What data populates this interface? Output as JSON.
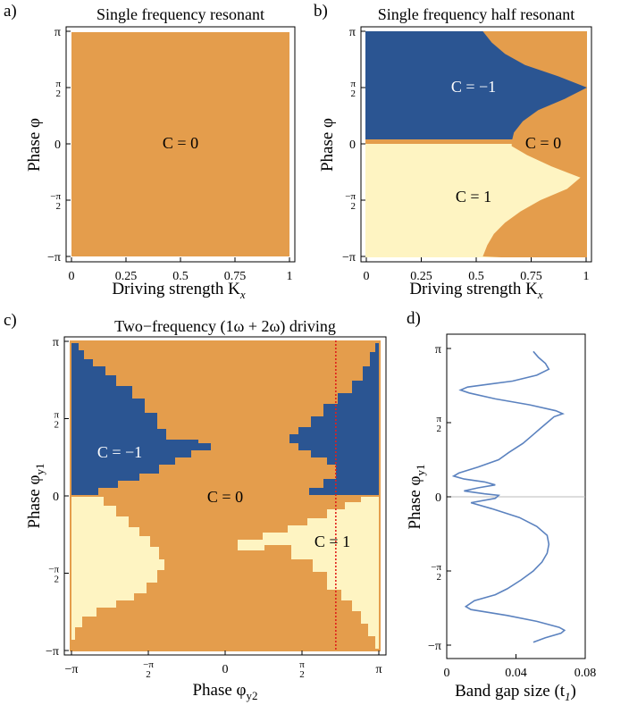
{
  "colors": {
    "orange": "#E49D4C",
    "blue": "#2B5592",
    "cream": "#FEF4C2",
    "gap_line": "#5B82BF",
    "red_dotted": "#E0201B",
    "zero_line": "#BBBBBB"
  },
  "panels": {
    "a": {
      "letter": "a)",
      "title": "Single frequency resonant",
      "xlabel": "Driving strength K",
      "xlabel_sub": "x",
      "ylabel": "Phase φ",
      "region_label": "C = 0"
    },
    "b": {
      "letter": "b)",
      "title": "Single frequency half resonant",
      "xlabel": "Driving strength K",
      "xlabel_sub": "x",
      "ylabel": "Phase φ",
      "region_labels": [
        "C = −1",
        "C = 0",
        "C = 1"
      ]
    },
    "c": {
      "letter": "c)",
      "title": "Two−frequency (1ω + 2ω) driving",
      "xlabel": "Phase φ",
      "xlabel_sub": "y2",
      "ylabel": "Phase φ",
      "ylabel_sub": "y1",
      "region_labels": [
        "C = −1",
        "C = 0",
        "C = 1"
      ]
    },
    "d": {
      "letter": "d)",
      "xlabel": "Band gap size (t",
      "xlabel_sub": "1",
      "xlabel_end": ")",
      "ylabel": "Phase φ",
      "ylabel_sub": "y1"
    }
  },
  "ticks": {
    "pi_labels": [
      "π",
      "π/2",
      "0",
      "−π/2",
      "−π"
    ],
    "k_labels": [
      "0",
      "0.25",
      "0.5",
      "0.75",
      "1"
    ],
    "gap_labels": [
      "0",
      "0.04",
      "0.08"
    ]
  },
  "chart_data": [
    {
      "type": "heatmap",
      "panel": "a",
      "title": "Single frequency resonant",
      "xlabel": "Driving strength K_x",
      "ylabel": "Phase φ",
      "xlim": [
        0,
        1
      ],
      "ylim": [
        "−π",
        "π"
      ],
      "regions": [
        {
          "label": "C = 0",
          "chern": 0,
          "color": "orange",
          "extent": "entire domain"
        }
      ]
    },
    {
      "type": "heatmap",
      "panel": "b",
      "title": "Single frequency half resonant",
      "xlabel": "Driving strength K_x",
      "ylabel": "Phase φ",
      "xlim": [
        0,
        1
      ],
      "ylim": [
        "−π",
        "π"
      ],
      "regions": [
        {
          "label": "C = −1",
          "chern": -1,
          "color": "blue",
          "extent": "φ > 0, left of boundary"
        },
        {
          "label": "C = 1",
          "chern": 1,
          "color": "cream",
          "extent": "φ < 0, left of boundary"
        },
        {
          "label": "C = 0",
          "chern": 0,
          "color": "orange",
          "extent": "right of boundary"
        }
      ],
      "boundary_K_vs_phi_over_pi": [
        [
          1.0,
          0.53
        ],
        [
          0.9,
          0.57
        ],
        [
          0.8,
          0.63
        ],
        [
          0.7,
          0.72
        ],
        [
          0.6,
          0.87
        ],
        [
          0.5,
          1.0
        ],
        [
          0.4,
          0.9
        ],
        [
          0.3,
          0.78
        ],
        [
          0.2,
          0.71
        ],
        [
          0.1,
          0.67
        ],
        [
          0.02,
          0.66
        ],
        [
          -0.02,
          0.66
        ],
        [
          -0.1,
          0.73
        ],
        [
          -0.2,
          0.84
        ],
        [
          -0.3,
          0.97
        ],
        [
          -0.4,
          0.91
        ],
        [
          -0.5,
          0.79
        ],
        [
          -0.6,
          0.7
        ],
        [
          -0.7,
          0.63
        ],
        [
          -0.8,
          0.58
        ],
        [
          -0.9,
          0.55
        ],
        [
          -1.0,
          0.53
        ]
      ]
    },
    {
      "type": "heatmap",
      "panel": "c",
      "title": "Two−frequency (1ω + 2ω) driving",
      "xlabel": "Phase φ_y2",
      "ylabel": "Phase φ_y1",
      "xlim": [
        "−π",
        "π"
      ],
      "ylim": [
        "−π",
        "π"
      ],
      "regions": [
        {
          "label": "C = −1",
          "chern": -1,
          "color": "blue"
        },
        {
          "label": "C = 0",
          "chern": 0,
          "color": "orange"
        },
        {
          "label": "C = 1",
          "chern": 1,
          "color": "cream"
        }
      ],
      "marker_line_phi_y2_over_pi": 0.72
    },
    {
      "type": "line",
      "panel": "d",
      "xlabel": "Band gap size (t_1)",
      "ylabel": "Phase φ_y1",
      "xlim": [
        0,
        0.08
      ],
      "ylim": [
        "−π",
        "π"
      ],
      "series": [
        {
          "points_phi_over_pi_gap": [
            [
              0.98,
              0.05
            ],
            [
              0.94,
              0.053
            ],
            [
              0.9,
              0.057
            ],
            [
              0.86,
              0.059
            ],
            [
              0.82,
              0.052
            ],
            [
              0.78,
              0.038
            ],
            [
              0.76,
              0.025
            ],
            [
              0.74,
              0.012
            ],
            [
              0.72,
              0.008
            ],
            [
              0.7,
              0.013
            ],
            [
              0.66,
              0.028
            ],
            [
              0.62,
              0.048
            ],
            [
              0.58,
              0.063
            ],
            [
              0.56,
              0.067
            ],
            [
              0.54,
              0.062
            ],
            [
              0.5,
              0.058
            ],
            [
              0.46,
              0.054
            ],
            [
              0.42,
              0.05
            ],
            [
              0.36,
              0.044
            ],
            [
              0.3,
              0.036
            ],
            [
              0.25,
              0.03
            ],
            [
              0.2,
              0.018
            ],
            [
              0.16,
              0.007
            ],
            [
              0.14,
              0.004
            ],
            [
              0.12,
              0.01
            ],
            [
              0.1,
              0.022
            ],
            [
              0.08,
              0.028
            ],
            [
              0.06,
              0.018
            ],
            [
              0.04,
              0.01
            ],
            [
              0.02,
              0.022
            ],
            [
              0.01,
              0.03
            ],
            [
              -0.01,
              0.028
            ],
            [
              -0.04,
              0.014
            ],
            [
              -0.08,
              0.026
            ],
            [
              -0.14,
              0.042
            ],
            [
              -0.2,
              0.052
            ],
            [
              -0.26,
              0.058
            ],
            [
              -0.32,
              0.059
            ],
            [
              -0.38,
              0.058
            ],
            [
              -0.44,
              0.055
            ],
            [
              -0.5,
              0.05
            ],
            [
              -0.56,
              0.043
            ],
            [
              -0.62,
              0.035
            ],
            [
              -0.66,
              0.028
            ],
            [
              -0.7,
              0.016
            ],
            [
              -0.74,
              0.011
            ],
            [
              -0.76,
              0.014
            ],
            [
              -0.8,
              0.035
            ],
            [
              -0.84,
              0.052
            ],
            [
              -0.88,
              0.065
            ],
            [
              -0.9,
              0.068
            ],
            [
              -0.92,
              0.066
            ],
            [
              -0.95,
              0.057
            ],
            [
              -0.98,
              0.05
            ]
          ]
        }
      ]
    }
  ]
}
